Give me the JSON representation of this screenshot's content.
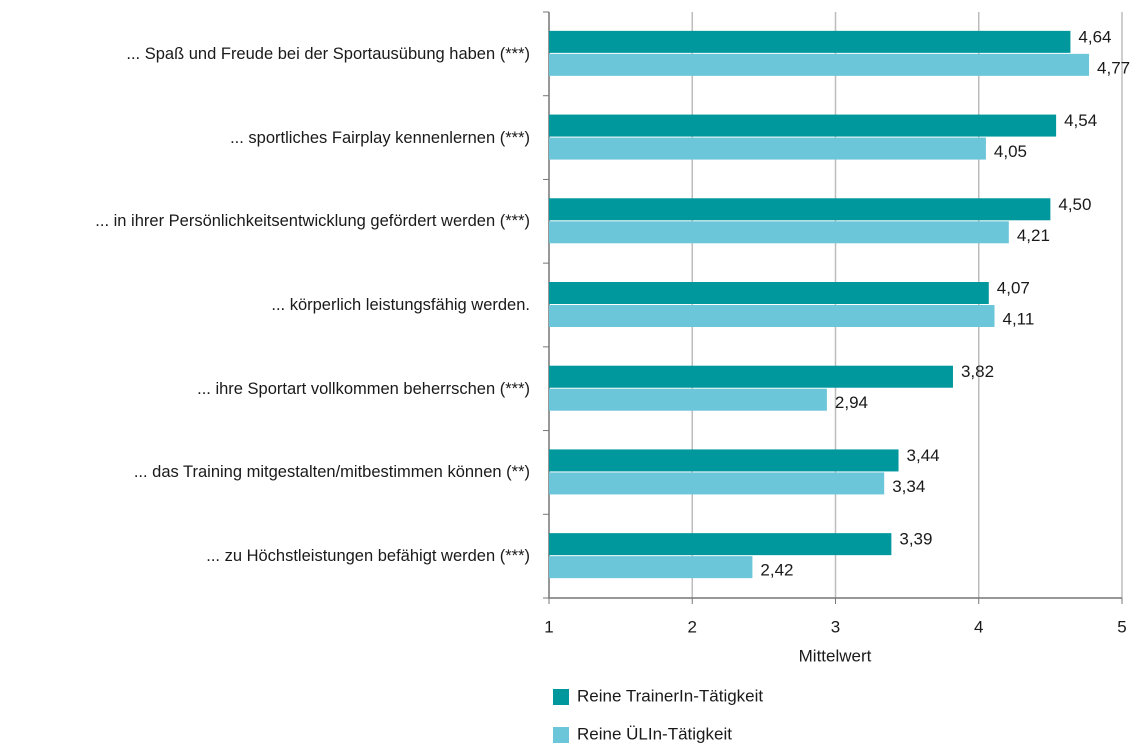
{
  "chart_data": {
    "type": "bar",
    "orientation": "horizontal",
    "categories": [
      "... Spaß und Freude bei der Sportausübung haben (***)",
      "... sportliches Fairplay kennenlernen (***)",
      "... in ihrer Persönlichkeitsentwicklung gefördert werden (***)",
      "... körperlich leistungsfähig werden.",
      "... ihre Sportart vollkommen beherrschen (***)",
      "... das Training mitgestalten/mitbestimmen können (**)",
      "... zu Höchstleistungen befähigt werden (***)"
    ],
    "series": [
      {
        "name": "Reine TrainerIn-Tätigkeit",
        "color": "#00979d",
        "values": [
          4.64,
          4.54,
          4.5,
          4.07,
          3.82,
          3.44,
          3.39
        ],
        "value_labels": [
          "4,64",
          "4,54",
          "4,50",
          "4,07",
          "3,82",
          "3,44",
          "3,39"
        ]
      },
      {
        "name": "Reine ÜLIn-Tätigkeit",
        "color": "#6cc6d9",
        "values": [
          4.77,
          4.05,
          4.21,
          4.11,
          2.94,
          3.34,
          2.42
        ],
        "value_labels": [
          "4,77",
          "4,05",
          "4,21",
          "4,11",
          "2,94",
          "3,34",
          "2,42"
        ]
      }
    ],
    "xlabel": "Mittelwert",
    "xlim": [
      1,
      5
    ],
    "xticks": [
      1,
      2,
      3,
      4,
      5
    ],
    "grid": true,
    "legend": "bottom"
  }
}
